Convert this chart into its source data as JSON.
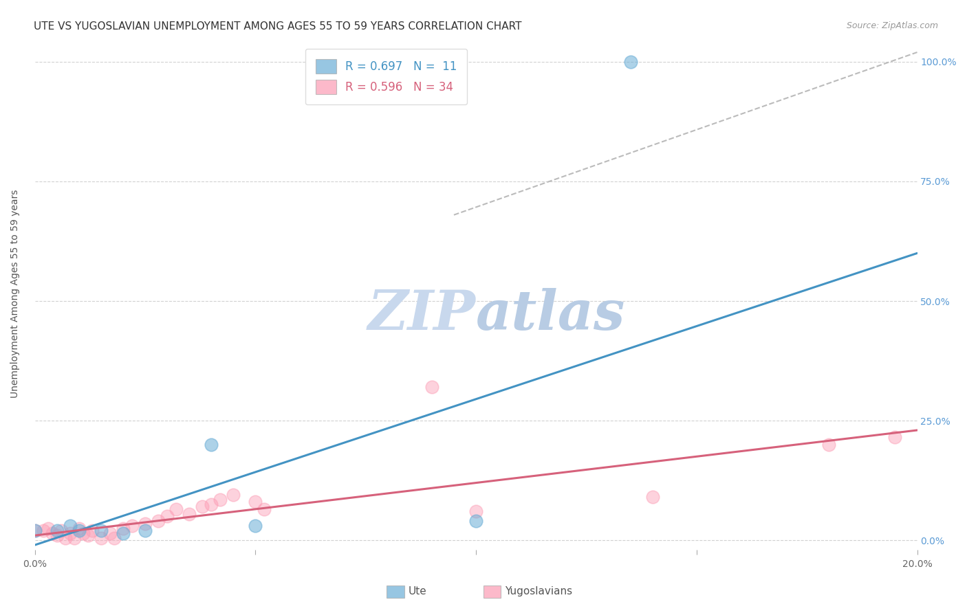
{
  "title": "UTE VS YUGOSLAVIAN UNEMPLOYMENT AMONG AGES 55 TO 59 YEARS CORRELATION CHART",
  "source": "Source: ZipAtlas.com",
  "ylabel": "Unemployment Among Ages 55 to 59 years",
  "xlim": [
    0.0,
    0.2
  ],
  "ylim": [
    -0.02,
    1.05
  ],
  "x_ticks": [
    0.0,
    0.05,
    0.1,
    0.15,
    0.2
  ],
  "y_ticks": [
    0.0,
    0.25,
    0.5,
    0.75,
    1.0
  ],
  "y_tick_labels_right": [
    "0.0%",
    "25.0%",
    "50.0%",
    "75.0%",
    "100.0%"
  ],
  "ute_color": "#6baed6",
  "yugo_color": "#fc9cb4",
  "ute_R": "0.697",
  "ute_N": "11",
  "yugo_R": "0.596",
  "yugo_N": "34",
  "ute_points": [
    [
      0.0,
      0.02
    ],
    [
      0.005,
      0.02
    ],
    [
      0.008,
      0.03
    ],
    [
      0.01,
      0.02
    ],
    [
      0.015,
      0.02
    ],
    [
      0.02,
      0.015
    ],
    [
      0.025,
      0.02
    ],
    [
      0.04,
      0.2
    ],
    [
      0.05,
      0.03
    ],
    [
      0.1,
      0.04
    ],
    [
      0.135,
      1.0
    ]
  ],
  "yugo_points": [
    [
      0.0,
      0.02
    ],
    [
      0.002,
      0.02
    ],
    [
      0.003,
      0.025
    ],
    [
      0.004,
      0.015
    ],
    [
      0.005,
      0.01
    ],
    [
      0.006,
      0.02
    ],
    [
      0.007,
      0.005
    ],
    [
      0.008,
      0.015
    ],
    [
      0.009,
      0.005
    ],
    [
      0.01,
      0.025
    ],
    [
      0.011,
      0.015
    ],
    [
      0.012,
      0.01
    ],
    [
      0.013,
      0.02
    ],
    [
      0.015,
      0.005
    ],
    [
      0.017,
      0.015
    ],
    [
      0.018,
      0.005
    ],
    [
      0.02,
      0.025
    ],
    [
      0.022,
      0.03
    ],
    [
      0.025,
      0.035
    ],
    [
      0.028,
      0.04
    ],
    [
      0.03,
      0.05
    ],
    [
      0.032,
      0.065
    ],
    [
      0.035,
      0.055
    ],
    [
      0.038,
      0.07
    ],
    [
      0.04,
      0.075
    ],
    [
      0.042,
      0.085
    ],
    [
      0.045,
      0.095
    ],
    [
      0.05,
      0.08
    ],
    [
      0.052,
      0.065
    ],
    [
      0.09,
      0.32
    ],
    [
      0.1,
      0.06
    ],
    [
      0.14,
      0.09
    ],
    [
      0.18,
      0.2
    ],
    [
      0.195,
      0.215
    ]
  ],
  "ute_line_x": [
    0.0,
    0.2
  ],
  "ute_line_y": [
    -0.01,
    0.6
  ],
  "yugo_line_x": [
    0.0,
    0.2
  ],
  "yugo_line_y": [
    0.01,
    0.23
  ],
  "dashed_line_x": [
    0.095,
    0.2
  ],
  "dashed_line_y": [
    0.68,
    1.02
  ],
  "background_color": "#ffffff",
  "grid_color": "#cccccc",
  "watermark_color": "#dde8f5",
  "title_fontsize": 11,
  "legend_fontsize": 12,
  "ute_line_color": "#4393c3",
  "yugo_line_color": "#d6617b",
  "dashed_line_color": "#bbbbbb"
}
